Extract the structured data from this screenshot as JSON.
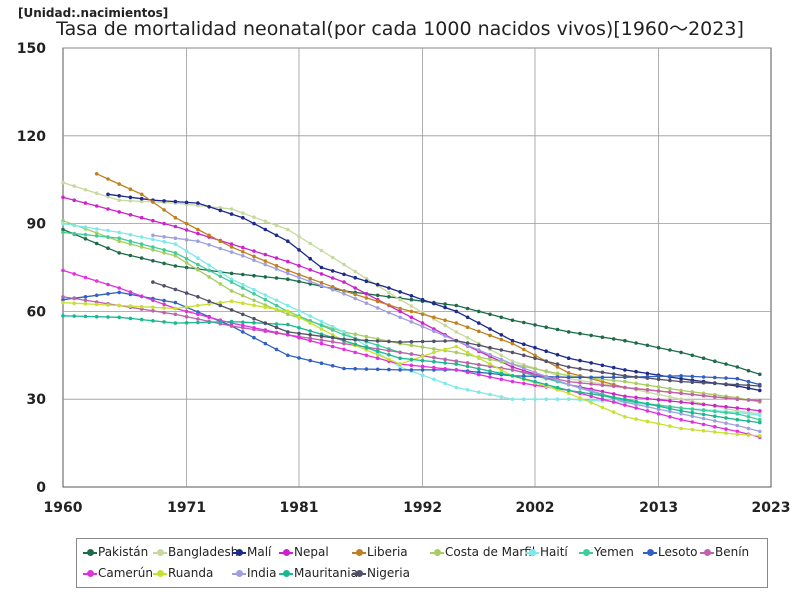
{
  "unit_label": "[Unidad:.nacimientos]",
  "chart_data": {
    "type": "line",
    "title": "Tasa de mortalidad neonatal(por cada 1000 nacidos vivos)[1960～2023]",
    "xlabel": "",
    "ylabel": "",
    "xlim": [
      1960,
      2023
    ],
    "ylim": [
      0,
      150
    ],
    "x_ticks": [
      1960,
      1971,
      1981,
      1992,
      2002,
      2013,
      2023
    ],
    "y_ticks": [
      0,
      30,
      60,
      90,
      120,
      150
    ],
    "grid": true,
    "legend_position": "bottom",
    "series": [
      {
        "name": "Pakistán",
        "color": "#1e6b4a",
        "points": [
          [
            1960,
            88
          ],
          [
            1965,
            80
          ],
          [
            1970,
            75.5
          ],
          [
            1975,
            73
          ],
          [
            1980,
            71
          ],
          [
            1985,
            67
          ],
          [
            1990,
            64.5
          ],
          [
            1995,
            62
          ],
          [
            2000,
            57
          ],
          [
            2005,
            53
          ],
          [
            2010,
            50
          ],
          [
            2015,
            46
          ],
          [
            2020,
            41
          ],
          [
            2022,
            38.5
          ]
        ]
      },
      {
        "name": "Bangladesh",
        "color": "#c8d8a0",
        "points": [
          [
            1960,
            104
          ],
          [
            1965,
            98
          ],
          [
            1970,
            97
          ],
          [
            1975,
            95
          ],
          [
            1980,
            88
          ],
          [
            1985,
            76
          ],
          [
            1990,
            64
          ],
          [
            1995,
            53
          ],
          [
            2000,
            43
          ],
          [
            2005,
            37
          ],
          [
            2010,
            34
          ],
          [
            2015,
            30
          ],
          [
            2020,
            26
          ],
          [
            2022,
            25
          ]
        ]
      },
      {
        "name": "Malí",
        "color": "#1c2a8c",
        "points": [
          [
            1964,
            100
          ],
          [
            1968,
            98
          ],
          [
            1972,
            97
          ],
          [
            1976,
            92
          ],
          [
            1980,
            84
          ],
          [
            1983,
            75
          ],
          [
            1986,
            71.5
          ],
          [
            1989,
            68
          ],
          [
            1992,
            64
          ],
          [
            1995,
            60
          ],
          [
            2000,
            50
          ],
          [
            2005,
            44
          ],
          [
            2010,
            40
          ],
          [
            2015,
            37
          ],
          [
            2020,
            34.5
          ],
          [
            2022,
            33
          ]
        ]
      },
      {
        "name": "Nepal",
        "color": "#cc22cc",
        "points": [
          [
            1960,
            99
          ],
          [
            1965,
            94
          ],
          [
            1970,
            89
          ],
          [
            1975,
            83
          ],
          [
            1980,
            77
          ],
          [
            1985,
            70
          ],
          [
            1990,
            60
          ],
          [
            1995,
            50
          ],
          [
            2000,
            41
          ],
          [
            2005,
            35
          ],
          [
            2010,
            31
          ],
          [
            2015,
            29
          ],
          [
            2020,
            27
          ],
          [
            2022,
            26
          ]
        ]
      },
      {
        "name": "Liberia",
        "color": "#c08020",
        "points": [
          [
            1963,
            107
          ],
          [
            1967,
            100
          ],
          [
            1970,
            92
          ],
          [
            1975,
            82
          ],
          [
            1980,
            74
          ],
          [
            1985,
            67
          ],
          [
            1990,
            61
          ],
          [
            1995,
            56
          ],
          [
            2000,
            49
          ],
          [
            2005,
            39
          ],
          [
            2010,
            34
          ],
          [
            2015,
            32
          ],
          [
            2020,
            30
          ],
          [
            2022,
            29.5
          ]
        ]
      },
      {
        "name": "Costa de Marfil",
        "color": "#a8cc60",
        "points": [
          [
            1960,
            91
          ],
          [
            1965,
            84
          ],
          [
            1970,
            79
          ],
          [
            1975,
            67
          ],
          [
            1980,
            59
          ],
          [
            1985,
            53
          ],
          [
            1990,
            49
          ],
          [
            1995,
            46
          ],
          [
            2000,
            42
          ],
          [
            2005,
            38
          ],
          [
            2010,
            36
          ],
          [
            2015,
            33
          ],
          [
            2020,
            30.5
          ],
          [
            2022,
            29
          ]
        ]
      },
      {
        "name": "Haití",
        "color": "#7fe8e8",
        "points": [
          [
            1960,
            90
          ],
          [
            1965,
            87
          ],
          [
            1970,
            83
          ],
          [
            1975,
            71
          ],
          [
            1980,
            62
          ],
          [
            1985,
            53
          ],
          [
            1990,
            41
          ],
          [
            1995,
            34
          ],
          [
            2000,
            30
          ],
          [
            2005,
            30
          ],
          [
            2010,
            29
          ],
          [
            2015,
            27
          ],
          [
            2020,
            25.5
          ],
          [
            2022,
            24.5
          ]
        ]
      },
      {
        "name": "Yemen",
        "color": "#40cc98",
        "points": [
          [
            1960,
            87
          ],
          [
            1965,
            85
          ],
          [
            1970,
            80
          ],
          [
            1975,
            70
          ],
          [
            1980,
            60
          ],
          [
            1985,
            52
          ],
          [
            1990,
            46
          ],
          [
            1995,
            43
          ],
          [
            2000,
            40
          ],
          [
            2005,
            35
          ],
          [
            2010,
            29.5
          ],
          [
            2015,
            27
          ],
          [
            2020,
            25
          ],
          [
            2022,
            23
          ]
        ]
      },
      {
        "name": "Lesoto",
        "color": "#3060c0",
        "points": [
          [
            1960,
            64
          ],
          [
            1965,
            66.5
          ],
          [
            1970,
            63
          ],
          [
            1975,
            55
          ],
          [
            1980,
            45
          ],
          [
            1985,
            40.5
          ],
          [
            1990,
            40
          ],
          [
            1995,
            40
          ],
          [
            2000,
            38
          ],
          [
            2005,
            37.5
          ],
          [
            2010,
            37.5
          ],
          [
            2015,
            38
          ],
          [
            2020,
            37
          ],
          [
            2022,
            35
          ]
        ]
      },
      {
        "name": "Benín",
        "color": "#c060b0",
        "points": [
          [
            1960,
            65
          ],
          [
            1965,
            62
          ],
          [
            1970,
            59
          ],
          [
            1975,
            55
          ],
          [
            1980,
            52
          ],
          [
            1985,
            49
          ],
          [
            1990,
            46
          ],
          [
            1995,
            43
          ],
          [
            2000,
            40
          ],
          [
            2005,
            36
          ],
          [
            2010,
            34
          ],
          [
            2015,
            32
          ],
          [
            2020,
            30
          ],
          [
            2022,
            29.5
          ]
        ]
      },
      {
        "name": "Camerún",
        "color": "#e030e0",
        "points": [
          [
            1960,
            74
          ],
          [
            1965,
            68
          ],
          [
            1970,
            61
          ],
          [
            1975,
            56
          ],
          [
            1980,
            52
          ],
          [
            1985,
            47
          ],
          [
            1990,
            42
          ],
          [
            1995,
            40
          ],
          [
            2000,
            36
          ],
          [
            2005,
            33
          ],
          [
            2010,
            28
          ],
          [
            2015,
            23
          ],
          [
            2020,
            19
          ],
          [
            2022,
            17
          ]
        ]
      },
      {
        "name": "Ruanda",
        "color": "#c8e030",
        "points": [
          [
            1960,
            63
          ],
          [
            1965,
            62
          ],
          [
            1970,
            61
          ],
          [
            1975,
            63.5
          ],
          [
            1980,
            60
          ],
          [
            1985,
            50
          ],
          [
            1990,
            42
          ],
          [
            1993,
            46
          ],
          [
            1995,
            48
          ],
          [
            2000,
            38
          ],
          [
            2005,
            32
          ],
          [
            2010,
            24
          ],
          [
            2015,
            20
          ],
          [
            2020,
            18
          ],
          [
            2022,
            17.5
          ]
        ]
      },
      {
        "name": "India",
        "color": "#a0a0e0",
        "points": [
          [
            1968,
            86
          ],
          [
            1972,
            84
          ],
          [
            1976,
            79
          ],
          [
            1980,
            73
          ],
          [
            1985,
            66
          ],
          [
            1990,
            58
          ],
          [
            1995,
            50
          ],
          [
            2000,
            42
          ],
          [
            2005,
            35
          ],
          [
            2010,
            29
          ],
          [
            2015,
            25
          ],
          [
            2020,
            21
          ],
          [
            2022,
            19
          ]
        ]
      },
      {
        "name": "Mauritania",
        "color": "#18b890",
        "points": [
          [
            1960,
            58.5
          ],
          [
            1965,
            58
          ],
          [
            1970,
            56
          ],
          [
            1975,
            56.5
          ],
          [
            1980,
            55.5
          ],
          [
            1985,
            50
          ],
          [
            1990,
            44
          ],
          [
            1995,
            42
          ],
          [
            2000,
            38
          ],
          [
            2005,
            33
          ],
          [
            2010,
            30
          ],
          [
            2015,
            26
          ],
          [
            2020,
            23
          ],
          [
            2022,
            22
          ]
        ]
      },
      {
        "name": "Nigeria",
        "color": "#505068",
        "points": [
          [
            1968,
            70
          ],
          [
            1972,
            65
          ],
          [
            1976,
            59
          ],
          [
            1980,
            53
          ],
          [
            1985,
            50.5
          ],
          [
            1990,
            49.5
          ],
          [
            1995,
            50
          ],
          [
            2000,
            46
          ],
          [
            2005,
            41
          ],
          [
            2010,
            38
          ],
          [
            2015,
            36
          ],
          [
            2020,
            35
          ],
          [
            2022,
            34.5
          ]
        ]
      }
    ]
  }
}
